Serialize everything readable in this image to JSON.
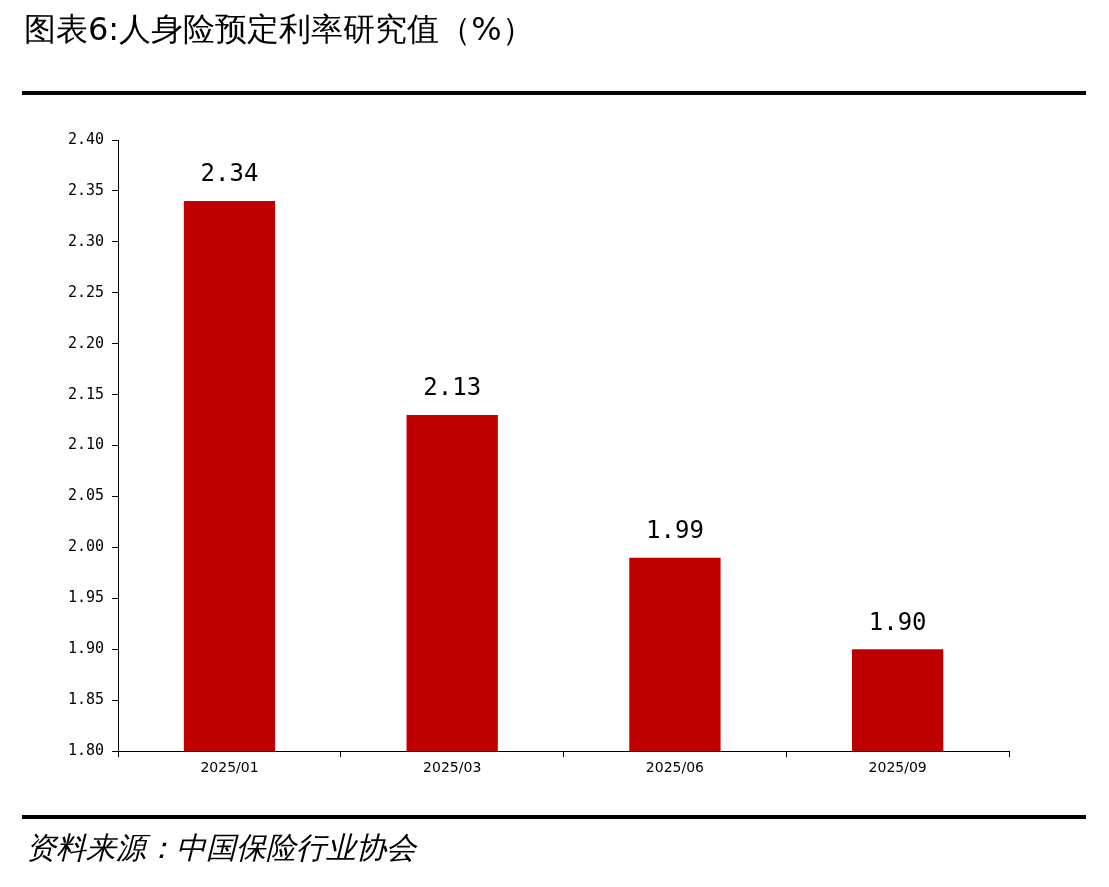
{
  "chart_data": {
    "type": "bar",
    "title": "图表6:人身险预定利率研究值（%）",
    "categories": [
      "2025/01",
      "2025/03",
      "2025/06",
      "2025/09"
    ],
    "values": [
      2.34,
      2.13,
      1.99,
      1.9
    ],
    "value_labels": [
      "2.34",
      "2.13",
      "1.99",
      "1.90"
    ],
    "color": "#c00000",
    "ylim": [
      1.8,
      2.4
    ],
    "yticks": [
      {
        "value": 1.8,
        "label": "1.80"
      },
      {
        "value": 1.85,
        "label": "1.85"
      },
      {
        "value": 1.9,
        "label": "1.90"
      },
      {
        "value": 1.95,
        "label": "1.95"
      },
      {
        "value": 2.0,
        "label": "2.00"
      },
      {
        "value": 2.05,
        "label": "2.05"
      },
      {
        "value": 2.1,
        "label": "2.10"
      },
      {
        "value": 2.15,
        "label": "2.15"
      },
      {
        "value": 2.2,
        "label": "2.20"
      },
      {
        "value": 2.25,
        "label": "2.25"
      },
      {
        "value": 2.3,
        "label": "2.30"
      },
      {
        "value": 2.35,
        "label": "2.35"
      },
      {
        "value": 2.4,
        "label": "2.40"
      }
    ],
    "grid": false,
    "legend": false,
    "annotations": [
      "资料来源：中国保险行业协会"
    ]
  }
}
